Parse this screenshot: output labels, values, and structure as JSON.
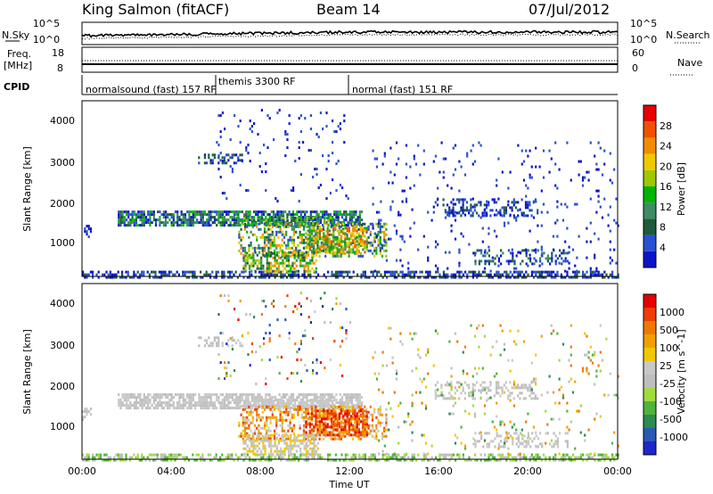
{
  "header": {
    "station": "King Salmon (fitACF)",
    "beam": "Beam 14",
    "date": "07/Jul/2012"
  },
  "top_strip": {
    "left_label": "N.Sky",
    "right_label": "N.Search",
    "left_ticks": [
      "10^5",
      "10^0"
    ],
    "right_ticks": [
      "10^5",
      "10^0"
    ]
  },
  "freq_strip": {
    "left_label_1": "Freq.",
    "left_label_2": "[MHz]",
    "left_ticks": [
      "18",
      "8"
    ],
    "right_label": "Nave",
    "right_ticks": [
      "60",
      "0"
    ]
  },
  "cpid": {
    "label": "CPID",
    "segments": [
      "normalsound (fast) 157 RF",
      "themis 3300 RF",
      "normal (fast) 151 RF"
    ]
  },
  "panels": {
    "y_label": "Slant Range [km]",
    "y_ticks": [
      "4000",
      "3000",
      "2000",
      "1000"
    ],
    "x_ticks": [
      "00:00",
      "04:00",
      "08:00",
      "12:00",
      "16:00",
      "20:00",
      "00:00"
    ],
    "x_label": "Time UT"
  },
  "power_scale": {
    "label": "Power [dB]",
    "ticks": [
      "28",
      "24",
      "20",
      "16",
      "12",
      "8",
      "4"
    ],
    "colors": [
      "#0a14c8",
      "#2850d2",
      "#1e5a3c",
      "#3c8c64",
      "#00b400",
      "#a0c800",
      "#f0c800",
      "#f08c00",
      "#f05000",
      "#e60000"
    ]
  },
  "velocity_scale": {
    "label": "Velocity [m s^-1]",
    "ticks": [
      "1000",
      "500",
      "100",
      "25",
      "-25",
      "-100",
      "-500",
      "-1000"
    ],
    "colors": [
      "#1e28c8",
      "#285ab4",
      "#2d8c50",
      "#50b43c",
      "#a0dc3c",
      "#bebebe",
      "#c8c8c8",
      "#f0c800",
      "#f0a000",
      "#f07800",
      "#f03c00",
      "#e60000"
    ]
  },
  "chart_data": {
    "type": "heatmap",
    "title": "King Salmon (fitACF)",
    "xlabel": "Time UT",
    "ylabel": "Slant Range [km]",
    "xlim_hours": [
      0,
      24
    ],
    "ylim_km": [
      180,
      4500
    ],
    "series": [
      {
        "name": "Power [dB]",
        "range": [
          0,
          30
        ]
      },
      {
        "name": "Velocity [m s^-1]",
        "range": [
          -1000,
          1000
        ]
      }
    ]
  }
}
